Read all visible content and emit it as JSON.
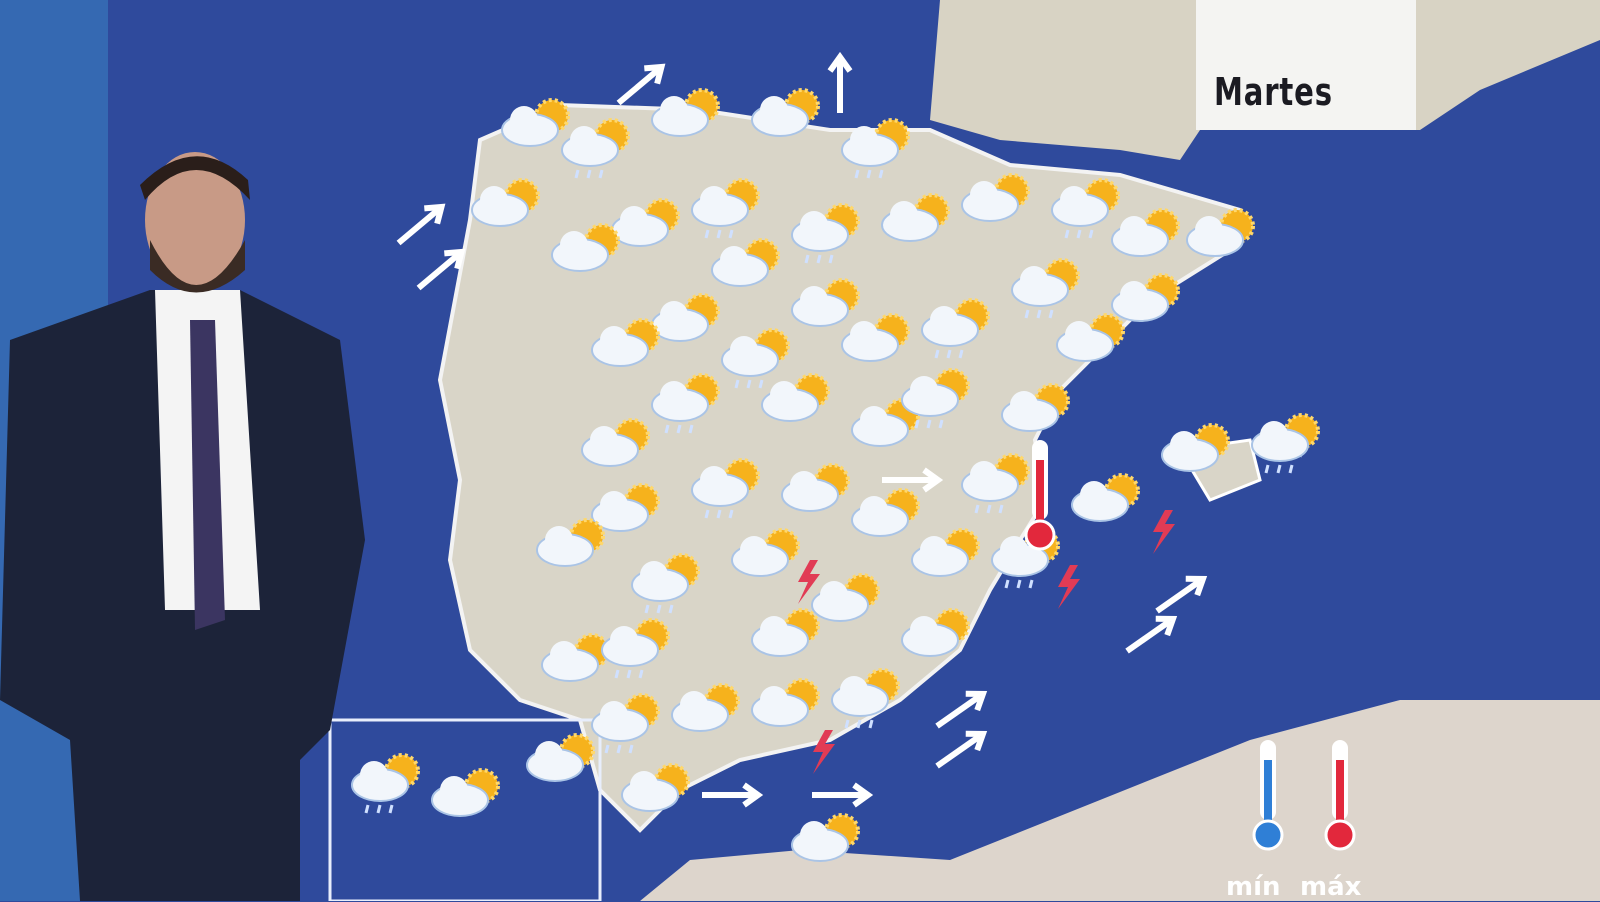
{
  "overlay": {
    "day_label": "Martes"
  },
  "legend": {
    "min_label": "mín",
    "max_label": "máx",
    "min_color": "#2f7fd6",
    "max_color": "#e2283c"
  },
  "colors": {
    "sea": "#2f4a9c",
    "land": "#d9d6cc",
    "cloud": "#f2f6fb",
    "sun": "#f6b21c",
    "storm": "#e13b55"
  },
  "icons": [
    "sun-cloud-icon",
    "cloud-rain-icon",
    "storm-lightning-icon",
    "wind-arrow-icon",
    "thermometer-icon"
  ]
}
